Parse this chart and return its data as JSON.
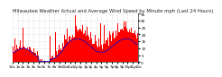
{
  "title": "Milwaukee Weather Actual and Average Wind Speed by Minute mph (Last 24 Hours)",
  "background_color": "#ffffff",
  "grid_color": "#c8c8c8",
  "bar_color": "#ff0000",
  "line_color": "#0000cc",
  "ylim": [
    0,
    35
  ],
  "yticks": [
    0,
    5,
    10,
    15,
    20,
    25,
    30,
    35
  ],
  "n_points": 1440,
  "title_fontsize": 3.8,
  "tick_fontsize": 3.0,
  "xtick_interval": 60
}
